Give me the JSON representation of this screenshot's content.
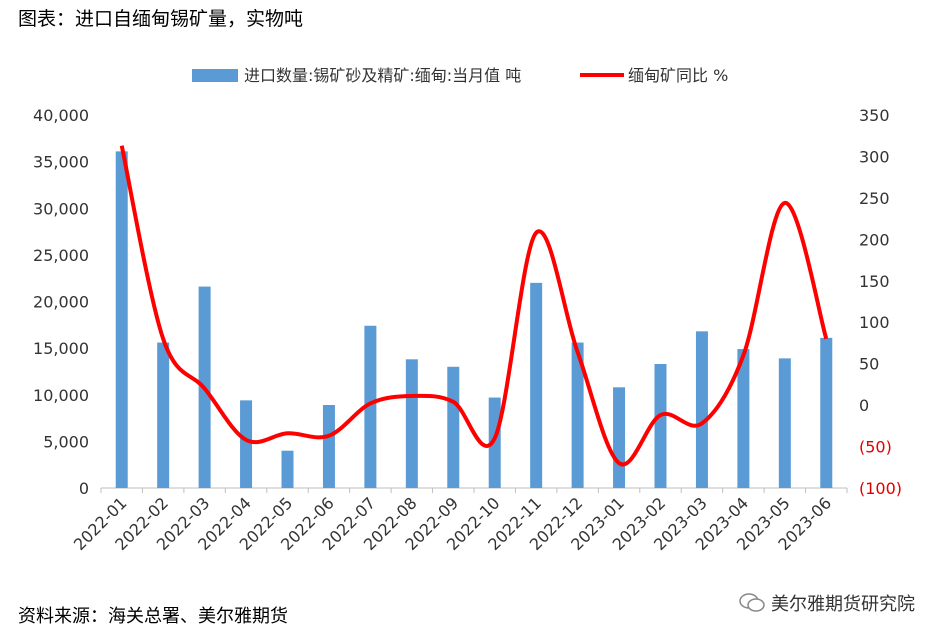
{
  "title": "图表：进口自缅甸锡矿量，实物吨",
  "source": "资料来源：海关总署、美尔雅期货",
  "watermark": "美尔雅期货研究院",
  "chart_data": {
    "type": "bar+line",
    "categories": [
      "2022-01",
      "2022-02",
      "2022-03",
      "2022-04",
      "2022-05",
      "2022-06",
      "2022-07",
      "2022-08",
      "2022-09",
      "2022-10",
      "2022-11",
      "2022-12",
      "2023-01",
      "2023-02",
      "2023-03",
      "2023-04",
      "2023-05",
      "2023-06"
    ],
    "series": [
      {
        "name": "进口数量:锡矿砂及精矿:缅甸:当月值 吨",
        "type": "bar",
        "axis": "left",
        "color": "#5b9bd5",
        "values": [
          36100,
          15600,
          21600,
          9400,
          4000,
          8900,
          17400,
          13800,
          13000,
          9700,
          22000,
          15600,
          10800,
          13300,
          16800,
          14900,
          13900,
          16100
        ]
      },
      {
        "name": "缅甸矿同比 %",
        "type": "line",
        "axis": "right",
        "color": "#ff0000",
        "values": [
          313,
          80,
          20,
          -42,
          -34,
          -37,
          2,
          11,
          4,
          -40,
          208,
          64,
          -70,
          -12,
          -22,
          60,
          244,
          80
        ]
      }
    ],
    "y_left": {
      "min": 0,
      "max": 40000,
      "ticks": [
        "0",
        "5,000",
        "10,000",
        "15,000",
        "20,000",
        "25,000",
        "30,000",
        "35,000",
        "40,000"
      ]
    },
    "y_right": {
      "min": -100,
      "max": 350,
      "ticks": [
        "(100)",
        "(50)",
        "0",
        "50",
        "100",
        "150",
        "200",
        "250",
        "300",
        "350"
      ]
    },
    "grid": false,
    "legend": "top"
  }
}
